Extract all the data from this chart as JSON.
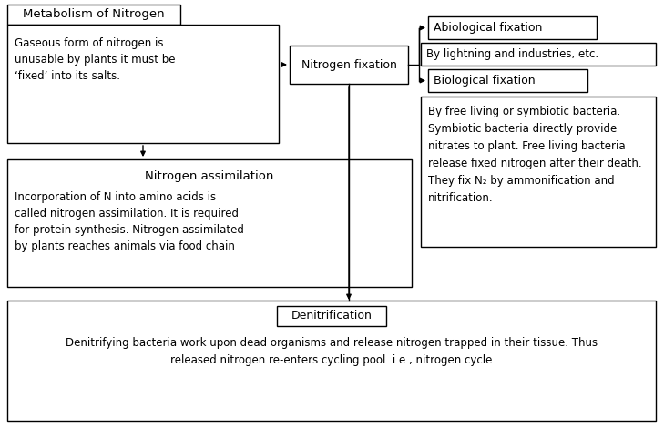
{
  "bg_color": "#ffffff",
  "fig_w": 7.29,
  "fig_h": 4.71,
  "dpi": 100,
  "metabolism_title": "Metabolism of Nitrogen",
  "metabolism_body": "Gaseous form of nitrogen is\nunusable by plants it must be\n‘fixed’ into its salts.",
  "nfix_label": "Nitrogen fixation",
  "abio_label": "Abiological fixation",
  "lightning_label": "By lightning and industries, etc.",
  "bio_label": "Biological fixation",
  "bio_desc": "By free living or symbiotic bacteria.\nSymbiotic bacteria directly provide\nnitrates to plant. Free living bacteria\nrelease fixed nitrogen after their death.\nThey fix N₂ by ammonification and\nnitrification.",
  "assim_title": "Nitrogen assimilation",
  "assim_body": "Incorporation of N into amino acids is\ncalled nitrogen assimilation. It is required\nfor protein synthesis. Nitrogen assimilated\nby plants reaches animals via food chain",
  "denif_title": "Denitrification",
  "denif_body": "Denitrifying bacteria work upon dead organisms and release nitrogen trapped in their tissue. Thus\nreleased nitrogen re-enters cycling pool. i.e., nitrogen cycle",
  "lc": "#000000",
  "fc": "#ffffff"
}
